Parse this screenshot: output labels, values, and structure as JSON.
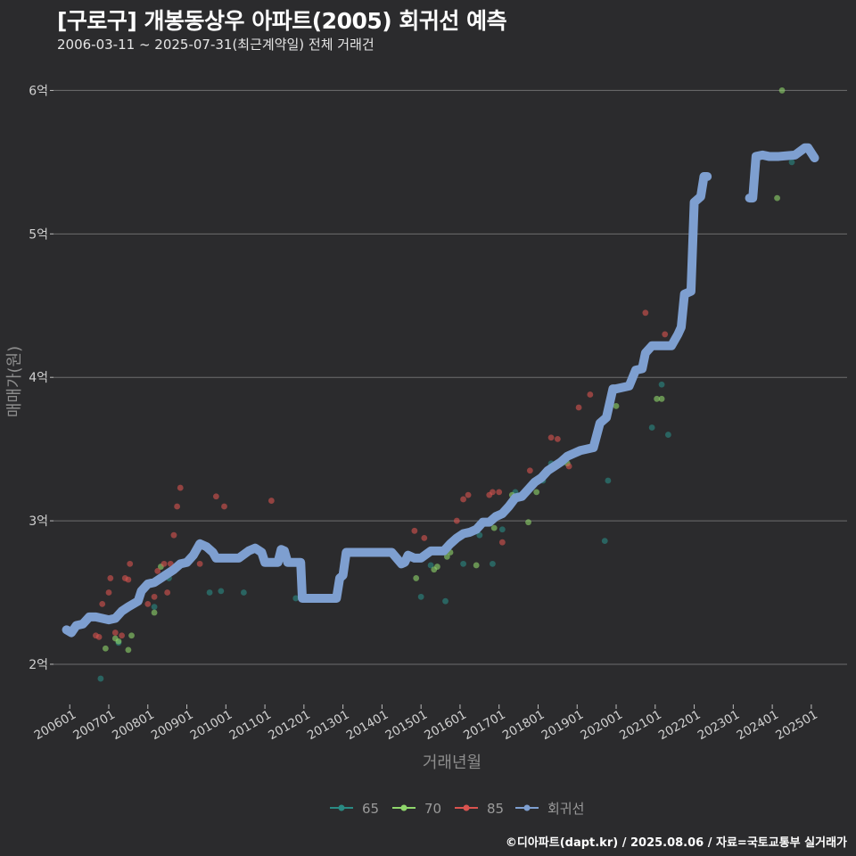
{
  "colors": {
    "background": "#2b2b2d",
    "grid": "#6e6e6e",
    "s65": "#2a8a83",
    "s70": "#8fd66b",
    "s85": "#d9534f",
    "regression": "#7e9fd0"
  },
  "header": {
    "title": "[구로구] 개봉동상우 아파트(2005) 회귀선 예측",
    "subtitle": "2006-03-11 ~ 2025-07-31(최근계약일) 전체 거래건"
  },
  "caption": "©디아파트(dapt.kr) / 2025.08.06 / 자료=국토교통부 실거래가",
  "chart_data": {
    "type": "scatter",
    "title": "[구로구] 개봉동상우 아파트(2005) 회귀선 예측",
    "xlabel": "거래년월",
    "ylabel": "매매가(원)",
    "x_unit": "months since 2006-01",
    "x_range": [
      -5,
      239
    ],
    "ylim": [
      1.72,
      6.27
    ],
    "grid": true,
    "legend_position": "bottom",
    "y_ticks": [
      2,
      3,
      4,
      5,
      6
    ],
    "y_tick_labels": [
      "2억",
      "3억",
      "4억",
      "5억",
      "6억"
    ],
    "x_ticks": [
      0,
      12,
      24,
      36,
      48,
      60,
      72,
      84,
      96,
      108,
      120,
      132,
      144,
      156,
      168,
      180,
      192,
      204,
      216,
      228
    ],
    "x_tick_labels": [
      "200601",
      "200701",
      "200801",
      "200901",
      "201001",
      "201101",
      "201201",
      "201301",
      "201401",
      "201501",
      "201601",
      "201701",
      "201801",
      "201901",
      "202001",
      "202101",
      "202201",
      "202301",
      "202401",
      "202501"
    ],
    "legend": [
      {
        "key": "s65",
        "label": "65"
      },
      {
        "key": "s70",
        "label": "70"
      },
      {
        "key": "s85",
        "label": "85"
      },
      {
        "key": "regression",
        "label": "회귀선"
      }
    ],
    "series": [
      {
        "name": "65",
        "color_key": "s65",
        "points": [
          [
            9.5,
            1.9
          ],
          [
            15,
            2.15
          ],
          [
            26,
            2.4
          ],
          [
            30.5,
            2.6
          ],
          [
            43,
            2.5
          ],
          [
            46.5,
            2.51
          ],
          [
            53.5,
            2.5
          ],
          [
            69.5,
            2.46
          ],
          [
            108,
            2.47
          ],
          [
            111,
            2.69
          ],
          [
            115.5,
            2.44
          ],
          [
            121,
            2.7
          ],
          [
            126,
            2.9
          ],
          [
            130,
            2.7
          ],
          [
            133,
            2.94
          ],
          [
            137,
            3.2
          ],
          [
            145.5,
            3.28
          ],
          [
            148,
            3.4
          ],
          [
            164.5,
            2.86
          ],
          [
            165.5,
            3.28
          ],
          [
            179,
            3.65
          ],
          [
            182,
            3.95
          ],
          [
            184,
            3.6
          ],
          [
            194.5,
            5.4
          ],
          [
            222,
            5.5
          ]
        ]
      },
      {
        "name": "70",
        "color_key": "s70",
        "points": [
          [
            11,
            2.11
          ],
          [
            14,
            2.18
          ],
          [
            15,
            2.16
          ],
          [
            18,
            2.1
          ],
          [
            19,
            2.2
          ],
          [
            26,
            2.36
          ],
          [
            28,
            2.68
          ],
          [
            106.5,
            2.6
          ],
          [
            112,
            2.66
          ],
          [
            113,
            2.68
          ],
          [
            116,
            2.75
          ],
          [
            117,
            2.78
          ],
          [
            125,
            2.69
          ],
          [
            130.5,
            2.95
          ],
          [
            136,
            3.18
          ],
          [
            141,
            2.99
          ],
          [
            143.5,
            3.2
          ],
          [
            153,
            3.4
          ],
          [
            168,
            3.8
          ],
          [
            180.5,
            3.85
          ],
          [
            182,
            3.85
          ],
          [
            217.5,
            5.25
          ],
          [
            219,
            6.0
          ]
        ]
      },
      {
        "name": "85",
        "color_key": "s85",
        "points": [
          [
            8,
            2.2
          ],
          [
            9,
            2.19
          ],
          [
            10,
            2.42
          ],
          [
            12,
            2.5
          ],
          [
            12.5,
            2.6
          ],
          [
            14,
            2.22
          ],
          [
            16,
            2.2
          ],
          [
            17,
            2.6
          ],
          [
            18,
            2.59
          ],
          [
            18.5,
            2.7
          ],
          [
            24,
            2.42
          ],
          [
            26,
            2.47
          ],
          [
            27,
            2.65
          ],
          [
            29,
            2.7
          ],
          [
            30,
            2.5
          ],
          [
            31,
            2.7
          ],
          [
            32,
            2.9
          ],
          [
            33,
            3.1
          ],
          [
            34,
            3.23
          ],
          [
            40,
            2.7
          ],
          [
            45,
            3.17
          ],
          [
            47.5,
            3.1
          ],
          [
            62,
            3.14
          ],
          [
            106,
            2.93
          ],
          [
            109,
            2.88
          ],
          [
            119,
            3.0
          ],
          [
            121,
            3.15
          ],
          [
            122.5,
            3.18
          ],
          [
            129,
            3.18
          ],
          [
            130,
            3.2
          ],
          [
            132,
            3.2
          ],
          [
            133,
            2.85
          ],
          [
            141.5,
            3.35
          ],
          [
            148,
            3.58
          ],
          [
            150,
            3.57
          ],
          [
            153.5,
            3.38
          ],
          [
            156.5,
            3.79
          ],
          [
            160,
            3.88
          ],
          [
            177,
            4.45
          ],
          [
            183,
            4.3
          ]
        ]
      }
    ],
    "regression_line": [
      [
        -1,
        2.24
      ],
      [
        0.5,
        2.22
      ],
      [
        2,
        2.27
      ],
      [
        4,
        2.28
      ],
      [
        6,
        2.33
      ],
      [
        8,
        2.33
      ],
      [
        10,
        2.32
      ],
      [
        12,
        2.31
      ],
      [
        14,
        2.32
      ],
      [
        16,
        2.37
      ],
      [
        18,
        2.4
      ],
      [
        21,
        2.44
      ],
      [
        22,
        2.51
      ],
      [
        24,
        2.56
      ],
      [
        26,
        2.57
      ],
      [
        28,
        2.6
      ],
      [
        30,
        2.63
      ],
      [
        32,
        2.66
      ],
      [
        34,
        2.7
      ],
      [
        36,
        2.71
      ],
      [
        38,
        2.76
      ],
      [
        40,
        2.84
      ],
      [
        42,
        2.82
      ],
      [
        44,
        2.78
      ],
      [
        45,
        2.74
      ],
      [
        52,
        2.74
      ],
      [
        55,
        2.79
      ],
      [
        57,
        2.81
      ],
      [
        59,
        2.78
      ],
      [
        60,
        2.71
      ],
      [
        64,
        2.71
      ],
      [
        65,
        2.8
      ],
      [
        66,
        2.79
      ],
      [
        67,
        2.71
      ],
      [
        71,
        2.71
      ],
      [
        71.5,
        2.46
      ],
      [
        82,
        2.46
      ],
      [
        83,
        2.6
      ],
      [
        84,
        2.62
      ],
      [
        85,
        2.78
      ],
      [
        99,
        2.78
      ],
      [
        102,
        2.7
      ],
      [
        103,
        2.71
      ],
      [
        104,
        2.76
      ],
      [
        106,
        2.74
      ],
      [
        108,
        2.74
      ],
      [
        111,
        2.79
      ],
      [
        115,
        2.79
      ],
      [
        117,
        2.84
      ],
      [
        119,
        2.88
      ],
      [
        121,
        2.91
      ],
      [
        123,
        2.92
      ],
      [
        125,
        2.94
      ],
      [
        127,
        2.99
      ],
      [
        129,
        2.99
      ],
      [
        131,
        3.03
      ],
      [
        133,
        3.05
      ],
      [
        135,
        3.1
      ],
      [
        137,
        3.16
      ],
      [
        139,
        3.17
      ],
      [
        141,
        3.22
      ],
      [
        143,
        3.27
      ],
      [
        145,
        3.3
      ],
      [
        147,
        3.35
      ],
      [
        149,
        3.38
      ],
      [
        151,
        3.41
      ],
      [
        153,
        3.45
      ],
      [
        155,
        3.47
      ],
      [
        157,
        3.49
      ],
      [
        159,
        3.5
      ],
      [
        161,
        3.51
      ],
      [
        163,
        3.68
      ],
      [
        165,
        3.72
      ],
      [
        167,
        3.92
      ],
      [
        168,
        3.92
      ],
      [
        172,
        3.94
      ],
      [
        174,
        4.05
      ],
      [
        176,
        4.06
      ],
      [
        177,
        4.17
      ],
      [
        179,
        4.22
      ],
      [
        185,
        4.22
      ],
      [
        187,
        4.3
      ],
      [
        188,
        4.35
      ],
      [
        189,
        4.58
      ],
      [
        191,
        4.6
      ],
      [
        192,
        5.22
      ],
      [
        194,
        5.26
      ],
      [
        195,
        5.4
      ],
      [
        196,
        5.4
      ]
    ],
    "regression_line_2": [
      [
        209,
        5.25
      ],
      [
        210,
        5.25
      ],
      [
        211,
        5.54
      ],
      [
        213,
        5.55
      ],
      [
        215,
        5.54
      ],
      [
        218,
        5.54
      ],
      [
        223,
        5.55
      ],
      [
        226,
        5.6
      ],
      [
        227,
        5.6
      ],
      [
        229,
        5.53
      ]
    ]
  }
}
